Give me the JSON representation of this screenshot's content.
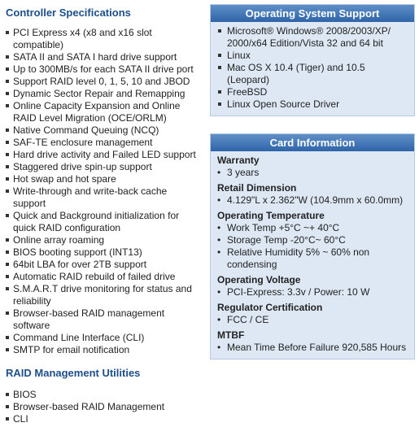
{
  "left": {
    "sections": [
      {
        "title": "Controller Specifications",
        "items": [
          "PCI Express x4 (x8 and x16 slot compatible)",
          "SATA II and SATA I hard drive support",
          "Up to 300MB/s for each SATA II drive port",
          "Support RAID level 0, 1, 5, 10 and JBOD",
          "Dynamic Sector Repair and Remapping",
          "Online Capacity Expansion and Online RAID Level Migration (OCE/ORLM)",
          "Native Command Queuing (NCQ)",
          "SAF-TE enclosure management",
          "Hard drive activity and Failed LED support",
          "Staggered drive spin-up support",
          "Hot swap and hot spare",
          "Write-through and write-back cache support",
          "Quick and Background initialization for quick RAID configuration",
          "Online array roaming",
          "BIOS booting support (INT13)",
          "64bit LBA for over 2TB support",
          "Automatic RAID rebuild of failed drive",
          "S.M.A.R.T drive monitoring for status and reliability",
          "Browser-based RAID management software",
          "Command Line Interface (CLI)",
          "SMTP for email notification"
        ]
      },
      {
        "title": "RAID Management Utilities",
        "items": [
          "BIOS",
          "Browser-based RAID Management",
          "CLI"
        ]
      }
    ]
  },
  "right": {
    "boxes": [
      {
        "title": "Operating System Support",
        "items": [
          "Microsoft® Windows® 2008/2003/XP/ 2000/x64 Edition/Vista 32 and 64 bit",
          "Linux",
          "Mac OS X 10.4 (Tiger) and 10.5 (Leopard)",
          "FreeBSD",
          "Linux Open Source Driver"
        ]
      },
      {
        "title": "Card Information",
        "groups": [
          {
            "heading": "Warranty",
            "items": [
              "3 years"
            ]
          },
          {
            "heading": "Retail Dimension",
            "items": [
              "4.129\"L x 2.362\"W (104.9mm x 60.0mm)"
            ]
          },
          {
            "heading": "Operating Temperature",
            "items": [
              "Work Temp +5°C ~+ 40°C",
              "Storage Temp -20°C~ 60°C",
              "Relative Humidity 5% ~ 60% non condensing"
            ]
          },
          {
            "heading": "Operating Voltage",
            "items": [
              "PCI-Express: 3.3v / Power: 10 W"
            ]
          },
          {
            "heading": "Regulator Certification",
            "items": [
              "FCC / CE"
            ]
          },
          {
            "heading": "MTBF",
            "items": [
              "Mean Time Before Failure 920,585 Hours"
            ]
          }
        ]
      }
    ]
  }
}
